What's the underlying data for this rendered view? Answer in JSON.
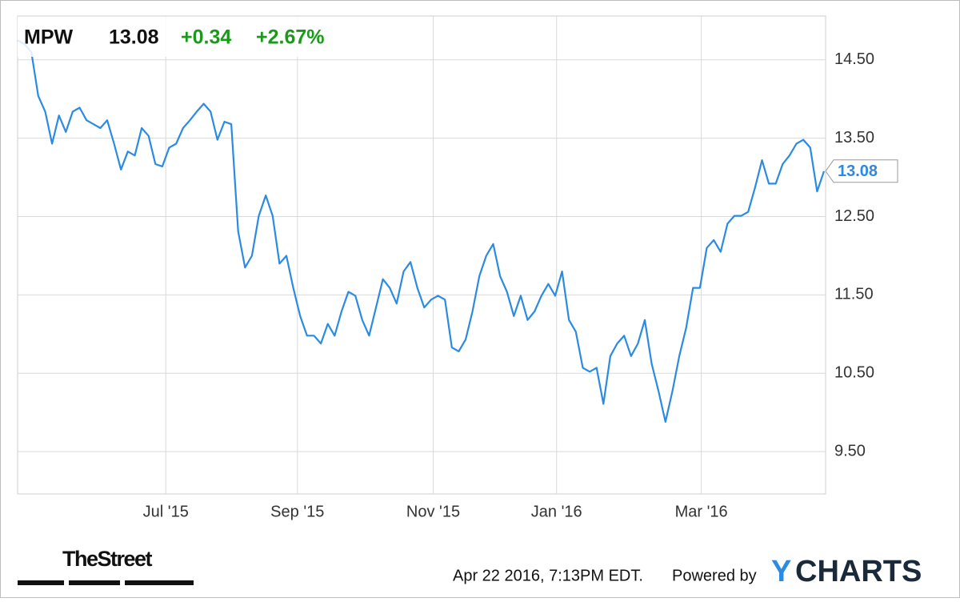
{
  "chart_data": {
    "type": "line",
    "header": {
      "symbol": "MPW",
      "price": 13.08,
      "change": "+0.34",
      "change_pct": "+2.67%"
    },
    "series": [
      {
        "name": "MPW",
        "color": "#2b8ae2",
        "values": [
          14.75,
          14.7,
          14.6,
          14.04,
          13.84,
          13.43,
          13.79,
          13.58,
          13.84,
          13.89,
          13.73,
          13.68,
          13.63,
          13.73,
          13.43,
          13.1,
          13.33,
          13.28,
          13.63,
          13.53,
          13.17,
          13.14,
          13.38,
          13.43,
          13.63,
          13.73,
          13.84,
          13.94,
          13.84,
          13.48,
          13.71,
          13.68,
          12.31,
          11.85,
          12.0,
          12.51,
          12.77,
          12.51,
          11.9,
          12.0,
          11.59,
          11.23,
          10.98,
          10.98,
          10.88,
          11.13,
          10.98,
          11.29,
          11.54,
          11.49,
          11.18,
          10.98,
          11.34,
          11.7,
          11.59,
          11.39,
          11.8,
          11.92,
          11.59,
          11.34,
          11.44,
          11.49,
          11.44,
          10.83,
          10.78,
          10.93,
          11.29,
          11.74,
          12.0,
          12.15,
          11.74,
          11.54,
          11.23,
          11.49,
          11.18,
          11.29,
          11.49,
          11.64,
          11.49,
          11.8,
          11.18,
          11.03,
          10.57,
          10.52,
          10.57,
          10.11,
          10.72,
          10.88,
          10.98,
          10.72,
          10.88,
          11.18,
          10.62,
          10.27,
          9.88,
          10.27,
          10.72,
          11.08,
          11.59,
          11.59,
          12.1,
          12.2,
          12.05,
          12.41,
          12.51,
          12.51,
          12.56,
          12.87,
          13.22,
          12.92,
          12.92,
          13.17,
          13.28,
          13.43,
          13.48,
          13.38,
          12.82,
          13.08
        ]
      }
    ],
    "xlim": [
      0,
      117
    ],
    "xticks": [
      {
        "value": 21.5,
        "label": "Jul '15"
      },
      {
        "value": 40.6,
        "label": "Sep '15"
      },
      {
        "value": 60.3,
        "label": "Nov '15"
      },
      {
        "value": 78.2,
        "label": "Jan '16"
      },
      {
        "value": 99.2,
        "label": "Mar '16"
      }
    ],
    "ylim": [
      8.96,
      15.06
    ],
    "yticks": [
      {
        "value": 9.5,
        "label": "9.50"
      },
      {
        "value": 10.5,
        "label": "10.50"
      },
      {
        "value": 11.5,
        "label": "11.50"
      },
      {
        "value": 12.5,
        "label": "12.50"
      },
      {
        "value": 13.5,
        "label": "13.50"
      },
      {
        "value": 14.5,
        "label": "14.50"
      }
    ],
    "grid": true,
    "footer": {
      "source": "TheStreet",
      "timestamp": "Apr 22 2016, 7:13PM EDT.",
      "powered": "Powered by",
      "logo_y": "Y",
      "logo_rest": "CHARTS"
    }
  }
}
